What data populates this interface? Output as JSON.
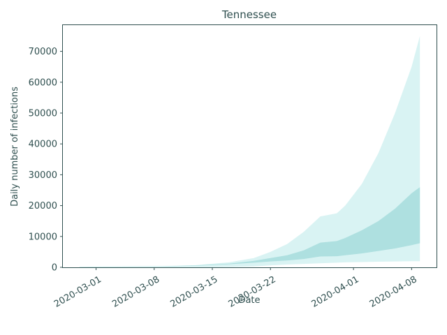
{
  "chart_data": {
    "type": "area",
    "title": "Tennessee",
    "xlabel": "Date",
    "ylabel": "Daily number of infections",
    "xlim": [
      "2020-02-26",
      "2020-04-11"
    ],
    "ylim": [
      0,
      78500
    ],
    "x_ticks": [
      "2020-03-01",
      "2020-03-08",
      "2020-03-15",
      "2020-03-22",
      "2020-04-01",
      "2020-04-08"
    ],
    "y_ticks": [
      0,
      10000,
      20000,
      30000,
      40000,
      50000,
      60000,
      70000
    ],
    "grid": false,
    "legend": "none",
    "colors": {
      "outer_band": "#d9f3f3",
      "inner_band": "#aee0e0",
      "axes": "#2f4f4f"
    },
    "x": [
      "2020-02-28",
      "2020-03-04",
      "2020-03-09",
      "2020-03-13",
      "2020-03-17",
      "2020-03-20",
      "2020-03-22",
      "2020-03-24",
      "2020-03-26",
      "2020-03-28",
      "2020-03-30",
      "2020-03-31",
      "2020-04-02",
      "2020-04-04",
      "2020-04-06",
      "2020-04-08",
      "2020-04-09"
    ],
    "series": [
      {
        "band": "outer",
        "lower": [
          0,
          0,
          0,
          0,
          100,
          300,
          600,
          900,
          1100,
          1300,
          1500,
          1600,
          1700,
          1800,
          1900,
          2000,
          2000
        ],
        "upper": [
          200,
          250,
          400,
          700,
          1600,
          3000,
          5000,
          7500,
          11500,
          16500,
          17500,
          20000,
          27000,
          37000,
          50000,
          65000,
          75000
        ]
      },
      {
        "band": "inner",
        "lower": [
          150,
          200,
          300,
          500,
          1000,
          1500,
          1900,
          2200,
          2700,
          3500,
          3600,
          3900,
          4500,
          5300,
          6100,
          7200,
          7800
        ],
        "upper": [
          200,
          250,
          350,
          600,
          1200,
          2100,
          3000,
          3900,
          5500,
          8000,
          8500,
          9500,
          12000,
          15000,
          19000,
          24000,
          26000
        ]
      }
    ]
  }
}
